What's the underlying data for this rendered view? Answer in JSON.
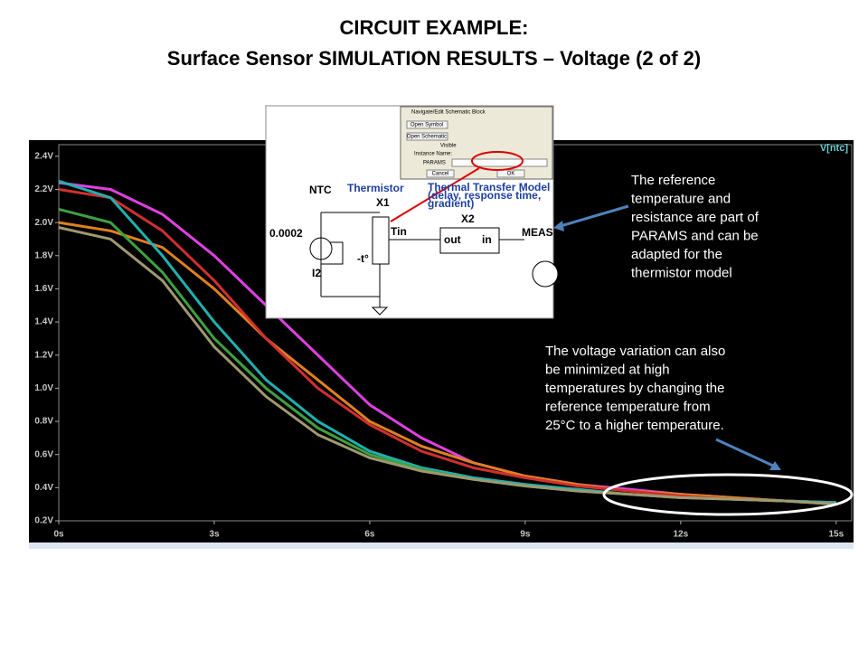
{
  "chart_data": {
    "type": "line",
    "title": "CIRCUIT EXAMPLE:",
    "subtitle": "Surface Sensor SIMULATION RESULTS – Voltage (2 of 2)",
    "trace_label": "V[ntc]",
    "x": [
      0,
      1,
      2,
      3,
      4,
      5,
      6,
      7,
      8,
      9,
      10,
      11,
      12,
      13,
      14,
      15
    ],
    "xlim": [
      0,
      15.3
    ],
    "xticks": [
      {
        "value": 0,
        "label": "0s"
      },
      {
        "value": 3,
        "label": "3s"
      },
      {
        "value": 6,
        "label": "6s"
      },
      {
        "value": 9,
        "label": "9s"
      },
      {
        "value": 12,
        "label": "12s"
      },
      {
        "value": 15,
        "label": "15s"
      }
    ],
    "ylim": [
      0.2,
      2.47
    ],
    "yticks": [
      {
        "value": 0.2,
        "label": "0.2V"
      },
      {
        "value": 0.4,
        "label": "0.4V"
      },
      {
        "value": 0.6,
        "label": "0.6V"
      },
      {
        "value": 0.8,
        "label": "0.8V"
      },
      {
        "value": 1.0,
        "label": "1.0V"
      },
      {
        "value": 1.2,
        "label": "1.2V"
      },
      {
        "value": 1.4,
        "label": "1.4V"
      },
      {
        "value": 1.6,
        "label": "1.6V"
      },
      {
        "value": 1.8,
        "label": "1.8V"
      },
      {
        "value": 2.0,
        "label": "2.0V"
      },
      {
        "value": 2.2,
        "label": "2.2V"
      },
      {
        "value": 2.4,
        "label": "2.4V"
      }
    ],
    "series": [
      {
        "color": "#e040e0",
        "values": [
          2.24,
          2.2,
          2.05,
          1.8,
          1.5,
          1.2,
          0.9,
          0.7,
          0.55,
          0.47,
          0.42,
          0.39,
          0.36,
          0.34,
          0.32,
          0.31
        ]
      },
      {
        "color": "#e08020",
        "values": [
          2.0,
          1.95,
          1.85,
          1.6,
          1.3,
          1.05,
          0.8,
          0.65,
          0.55,
          0.47,
          0.42,
          0.38,
          0.36,
          0.34,
          0.32,
          0.31
        ]
      },
      {
        "color": "#d03030",
        "values": [
          2.2,
          2.15,
          1.95,
          1.65,
          1.3,
          1.0,
          0.78,
          0.62,
          0.52,
          0.46,
          0.41,
          0.38,
          0.35,
          0.33,
          0.32,
          0.31
        ]
      },
      {
        "color": "#20b0b0",
        "values": [
          2.25,
          2.15,
          1.8,
          1.4,
          1.05,
          0.8,
          0.62,
          0.52,
          0.46,
          0.42,
          0.39,
          0.36,
          0.34,
          0.33,
          0.32,
          0.31
        ]
      },
      {
        "color": "#40a040",
        "values": [
          2.08,
          2.0,
          1.7,
          1.3,
          1.0,
          0.76,
          0.6,
          0.51,
          0.45,
          0.41,
          0.38,
          0.36,
          0.34,
          0.33,
          0.32,
          0.3
        ]
      },
      {
        "color": "#a09870",
        "values": [
          1.97,
          1.9,
          1.65,
          1.25,
          0.95,
          0.72,
          0.58,
          0.5,
          0.45,
          0.41,
          0.38,
          0.36,
          0.34,
          0.33,
          0.32,
          0.3
        ]
      }
    ],
    "annotations": [
      [
        "The reference",
        "temperature and",
        "resistance are part of",
        "PARAMS and can be",
        "adapted for the",
        "thermistor model"
      ],
      [
        "The voltage variation can also",
        "be minimized at high",
        "temperatures by changing the",
        "reference temperature from",
        "25°C to a higher temperature."
      ]
    ]
  },
  "inset": {
    "dialog_title": "Navigate/Edit Schematic Block",
    "open_symbol": "Open Symbol",
    "open_schematic": "Open Schematic",
    "visible": "Visible",
    "instance_name": "Instance Name:",
    "params": "PARAMS",
    "cancel": "Cancel",
    "ok": "OK",
    "ntc": "NTC",
    "thermistor": "Thermistor",
    "x1": "X1",
    "source": "0.0002",
    "i2": "I2",
    "t": "-t°",
    "tin": "Tin",
    "model": [
      "Thermal Transfer Model",
      "(delay, response time,",
      "gradient)"
    ],
    "x2": "X2",
    "out": "out",
    "in": "in",
    "meas": "MEAS"
  }
}
